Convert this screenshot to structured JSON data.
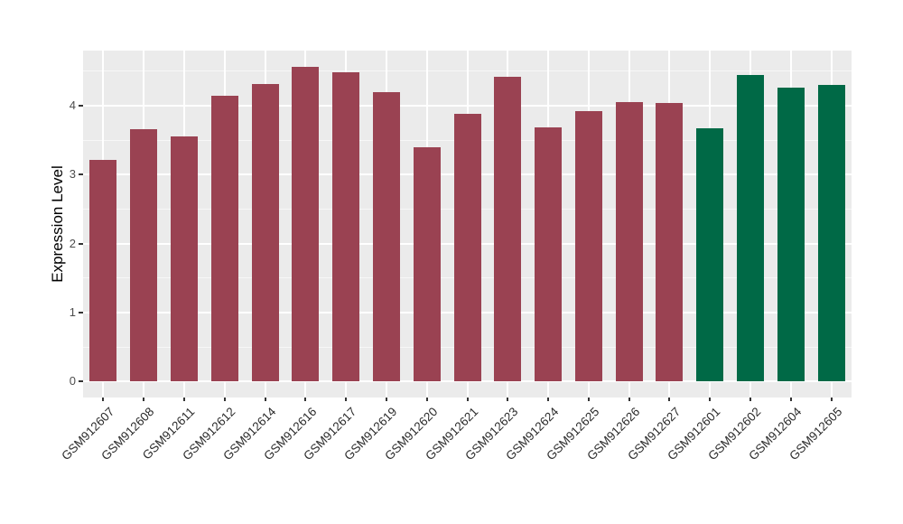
{
  "chart_data": {
    "type": "bar",
    "title": "",
    "xlabel": "",
    "ylabel": "Expression Level",
    "categories": [
      "GSM912607",
      "GSM912608",
      "GSM912611",
      "GSM912612",
      "GSM912614",
      "GSM912616",
      "GSM912617",
      "GSM912619",
      "GSM912620",
      "GSM912621",
      "GSM912623",
      "GSM912624",
      "GSM912625",
      "GSM912626",
      "GSM912627",
      "GSM912601",
      "GSM912602",
      "GSM912604",
      "GSM912605"
    ],
    "values": [
      3.21,
      3.66,
      3.56,
      4.15,
      4.31,
      4.56,
      4.48,
      4.2,
      3.4,
      3.88,
      4.42,
      3.69,
      3.92,
      4.05,
      4.04,
      3.68,
      4.44,
      4.26,
      4.3
    ],
    "bar_colors": [
      "#9A4252",
      "#9A4252",
      "#9A4252",
      "#9A4252",
      "#9A4252",
      "#9A4252",
      "#9A4252",
      "#9A4252",
      "#9A4252",
      "#9A4252",
      "#9A4252",
      "#9A4252",
      "#9A4252",
      "#9A4252",
      "#9A4252",
      "#006946",
      "#006946",
      "#006946",
      "#006946"
    ],
    "group_colors": {
      "group1": "#9A4252",
      "group2": "#006946"
    },
    "y_ticks": [
      0,
      1,
      2,
      3,
      4
    ],
    "y_minor_ticks": [
      0.5,
      1.5,
      2.5,
      3.5,
      4.5
    ],
    "ylim": [
      -0.23,
      4.8
    ],
    "grid": true,
    "legend": false,
    "panel_bg": "#EBEBEB",
    "grid_color": "#FFFFFF",
    "tick_color": "#333333",
    "axis_text_color": "#4D4D4D"
  }
}
